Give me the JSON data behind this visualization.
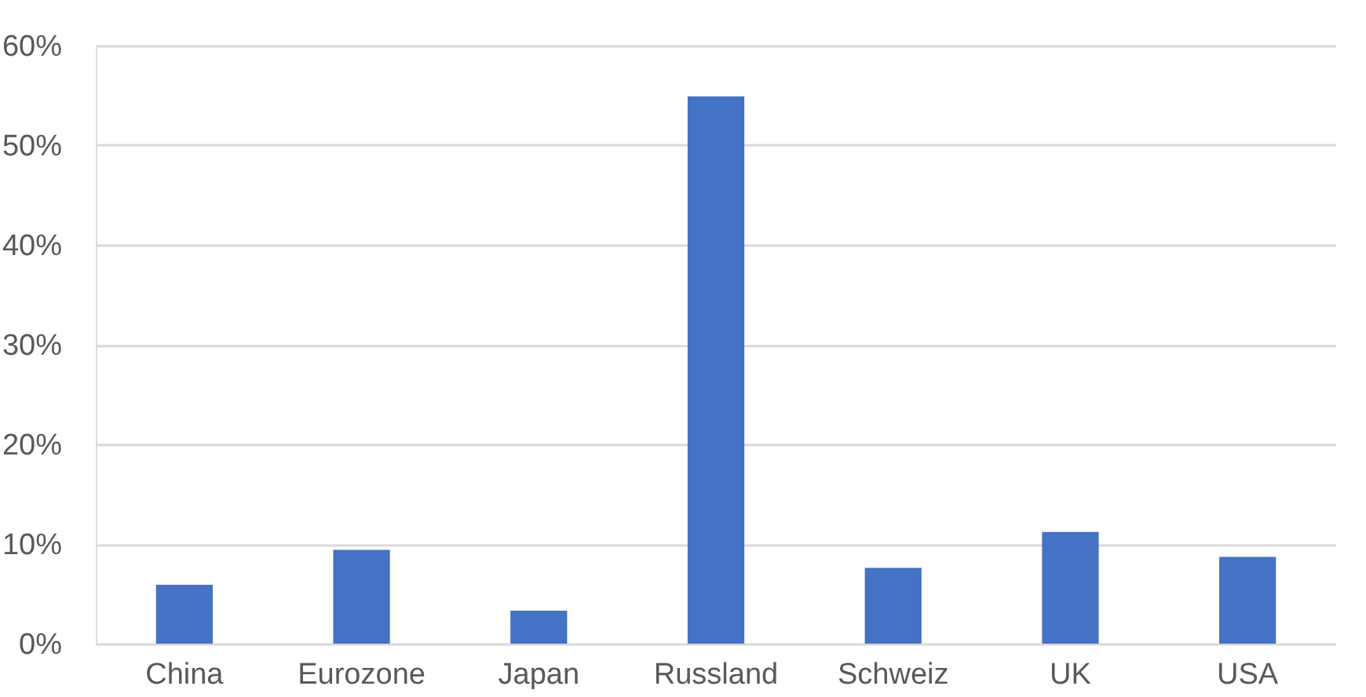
{
  "chart_data": {
    "type": "bar",
    "categories": [
      "China",
      "Eurozone",
      "Japan",
      "Russland",
      "Schweiz",
      "UK",
      "USA"
    ],
    "values": [
      5.9,
      9.4,
      3.3,
      54.9,
      7.6,
      11.2,
      8.7
    ],
    "color": "#4472c4",
    "ylim": [
      0,
      60
    ],
    "yticks": [
      {
        "value": 0,
        "label": "0%"
      },
      {
        "value": 10,
        "label": "10%"
      },
      {
        "value": 20,
        "label": "20%"
      },
      {
        "value": 30,
        "label": "30%"
      },
      {
        "value": 40,
        "label": "40%"
      },
      {
        "value": 50,
        "label": "50%"
      },
      {
        "value": 60,
        "label": "60%"
      }
    ],
    "grid": "y"
  }
}
